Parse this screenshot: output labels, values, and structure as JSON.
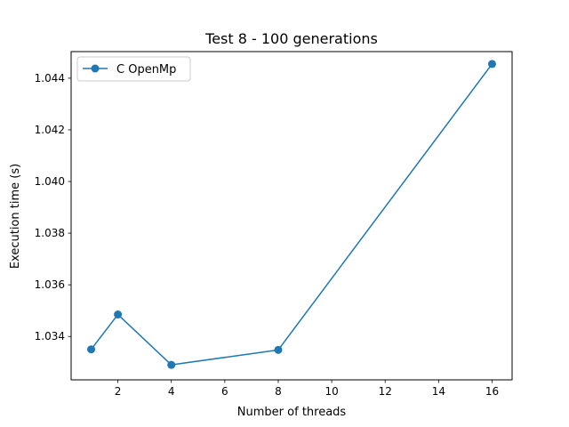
{
  "chart_data": {
    "type": "line",
    "title": "Test 8 - 100 generations",
    "xlabel": "Number of threads",
    "ylabel": "Execution time (s)",
    "xlim": [
      0.25,
      16.75
    ],
    "ylim": [
      1.03232,
      1.04503
    ],
    "xticks": [
      2,
      4,
      6,
      8,
      10,
      12,
      14,
      16
    ],
    "yticks": [
      1.034,
      1.036,
      1.038,
      1.04,
      1.042,
      1.044
    ],
    "grid": false,
    "legend_position": "top-left",
    "series": [
      {
        "name": "C OpenMp",
        "color": "#1f77b4",
        "marker": "circle",
        "x": [
          1,
          2,
          4,
          8,
          16
        ],
        "y": [
          1.0335,
          1.03485,
          1.0329,
          1.03348,
          1.04455
        ]
      }
    ]
  }
}
